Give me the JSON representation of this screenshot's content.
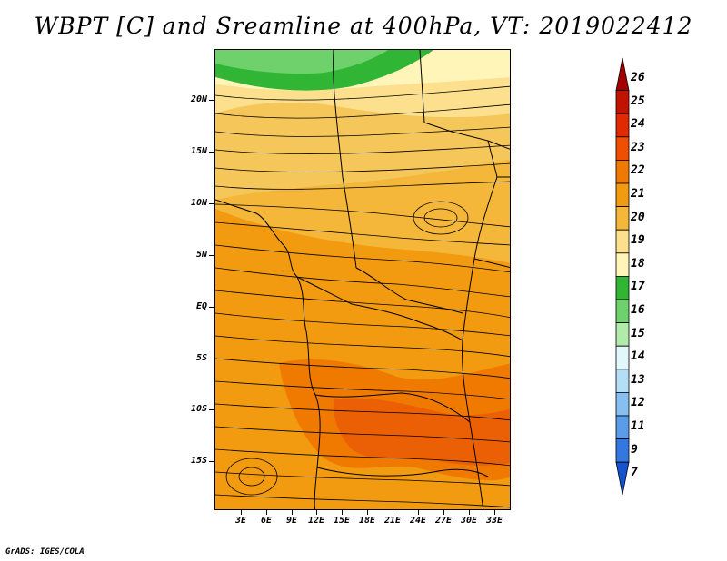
{
  "title": "WBPT [C] and Sreamline at 400hPa, VT: 2019022412",
  "credit": "GrADS: IGES/COLA",
  "map": {
    "lat_labels": [
      "20N",
      "15N",
      "10N",
      "5N",
      "EQ",
      "5S",
      "10S",
      "15S"
    ],
    "lon_labels": [
      "3E",
      "6E",
      "9E",
      "12E",
      "15E",
      "18E",
      "21E",
      "24E",
      "27E",
      "30E",
      "33E"
    ]
  },
  "colorbar": {
    "labels": [
      "26",
      "25",
      "24",
      "23",
      "22",
      "21",
      "20",
      "19",
      "18",
      "17",
      "16",
      "15",
      "14",
      "13",
      "12",
      "11",
      "9",
      "7"
    ],
    "colors": [
      "#a50000",
      "#c21200",
      "#e12a00",
      "#f04e00",
      "#f07a00",
      "#f29a10",
      "#f5b73a",
      "#fde08e",
      "#fff5b8",
      "#31b534",
      "#6fd16b",
      "#b0ebaa",
      "#e2f7fa",
      "#b3def5",
      "#87c0f0",
      "#5a9bea",
      "#3577e0",
      "#1653cf"
    ]
  }
}
